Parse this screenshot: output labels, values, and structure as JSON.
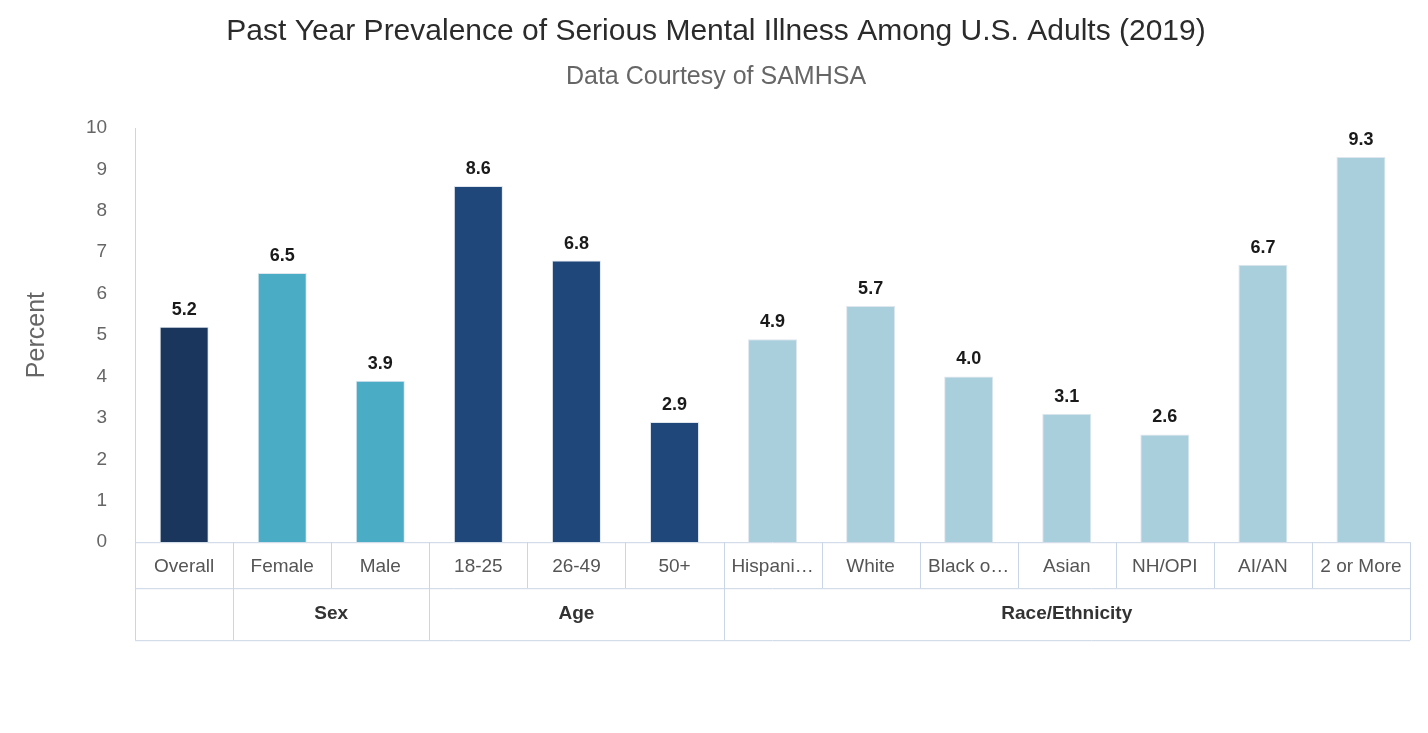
{
  "chart_data": {
    "type": "bar",
    "title": "Past Year Prevalence of Serious Mental Illness Among U.S. Adults (2019)",
    "subtitle": "Data Courtesy of SAMHSA",
    "y_label": "Percent",
    "categories": [
      "Overall",
      "Female",
      "Male",
      "18-25",
      "26-49",
      "50+",
      "Hispani…",
      "White",
      "Black o…",
      "Asian",
      "NH/OPI",
      "AI/AN",
      "2 or More"
    ],
    "groups": [
      null,
      "Sex",
      "Sex",
      "Age",
      "Age",
      "Age",
      "Race/Ethnicity",
      "Race/Ethnicity",
      "Race/Ethnicity",
      "Race/Ethnicity",
      "Race/Ethnicity",
      "Race/Ethnicity",
      "Race/Ethnicity"
    ],
    "values": [
      5.2,
      6.5,
      3.9,
      8.6,
      6.8,
      2.9,
      4.9,
      5.7,
      4.0,
      3.1,
      2.6,
      6.7,
      9.3
    ],
    "value_labels": [
      "5.2",
      "6.5",
      "3.9",
      "8.6",
      "6.8",
      "2.9",
      "4.9",
      "5.7",
      "4.0",
      "3.1",
      "2.6",
      "6.7",
      "9.3"
    ],
    "colors": [
      "#1b365d",
      "#4bacc6",
      "#4bacc6",
      "#1f477a",
      "#1f477a",
      "#1f477a",
      "#a9cedc",
      "#a9cedc",
      "#a9cedc",
      "#a9cedc",
      "#a9cedc",
      "#a9cedc",
      "#a9cedc"
    ],
    "ylim": [
      0,
      10
    ],
    "yticks": [
      0,
      1,
      2,
      3,
      4,
      5,
      6,
      7,
      8,
      9,
      10
    ],
    "grid": false,
    "data_labels": true
  }
}
